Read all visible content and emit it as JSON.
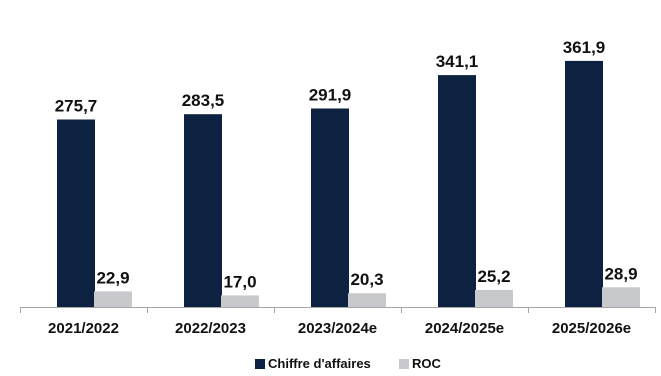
{
  "chart_data": {
    "type": "bar",
    "categories": [
      "2021/2022",
      "2022/2023",
      "2023/2024e",
      "2024/2025e",
      "2025/2026e"
    ],
    "series": [
      {
        "name": "Chiffre d'affaires",
        "values": [
          275.7,
          283.5,
          291.9,
          341.1,
          361.9
        ],
        "labels": [
          "275,7",
          "283,5",
          "291,9",
          "341,1",
          "361,9"
        ],
        "color": "#0d2240"
      },
      {
        "name": "ROC",
        "values": [
          22.9,
          17.0,
          20.3,
          25.2,
          28.9
        ],
        "labels": [
          "22,9",
          "17,0",
          "20,3",
          "25,2",
          "28,9"
        ],
        "color": "#c8c9cc"
      }
    ],
    "ylim": [
      0,
      425
    ],
    "grid": false,
    "legend": "bottom-center"
  }
}
